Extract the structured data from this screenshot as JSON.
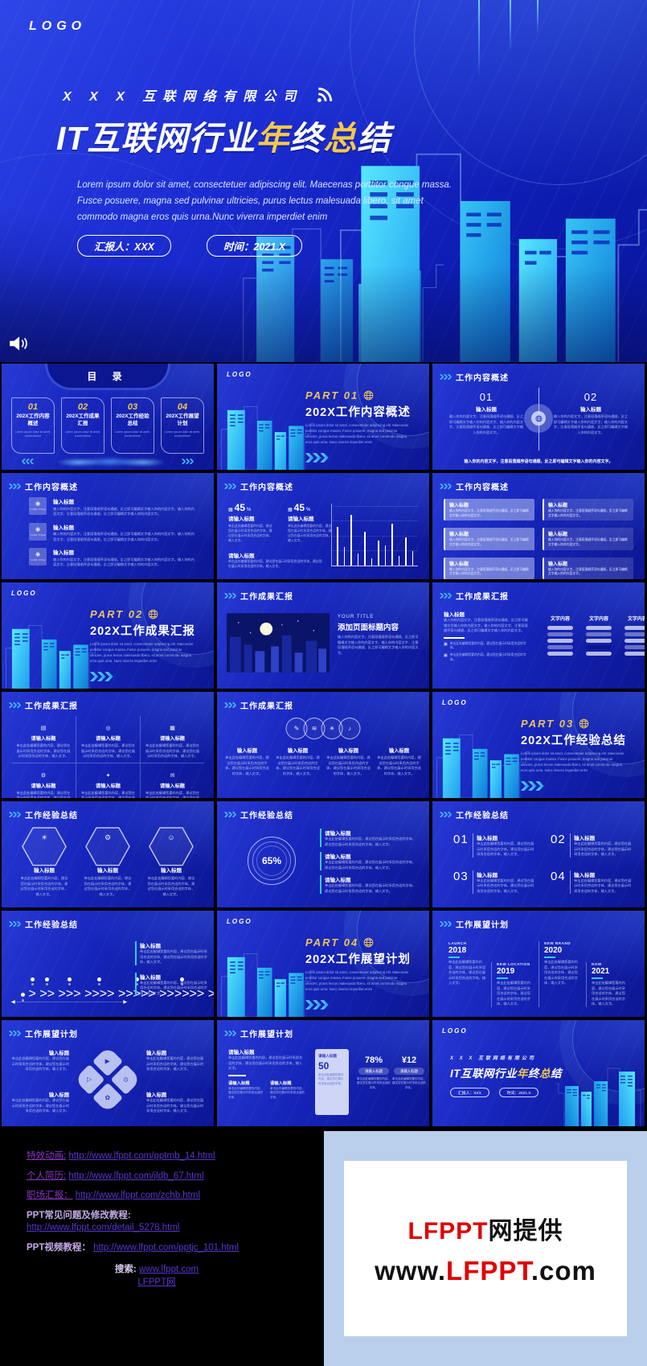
{
  "hero": {
    "logo": "LOGO",
    "company": "X X X 互联网络有限公司",
    "title_parts": [
      {
        "text": "IT互联网行业",
        "accent": false
      },
      {
        "text": "年",
        "accent": true
      },
      {
        "text": "终",
        "accent": false
      },
      {
        "text": "总",
        "accent": true
      },
      {
        "text": "结",
        "accent": false
      }
    ],
    "subtitle": "Lorem ipsum dolor sit amet, consectetuer adipiscing elit. Maecenas porttitor congue massa. Fusce posuere, magna sed pulvinar ultricies, purus lectus malesuada libero, sit amet commodo magna eros quis urna.Nunc viverra imperdiet enim",
    "presenter_badge": "汇报人：XXX",
    "date_badge": "时间：2021.X"
  },
  "colors": {
    "accent_yellow": "#f2c94c",
    "accent_cyan": "#39c7f2",
    "brand_red": "#e00000",
    "deep_blue": "#0d1cb2"
  },
  "placeholders": {
    "body": "输入你的内容文字，注意段落顺序语句通顺，反之即可编辑文字输入你的内容文字，输入你的内容文字，注意段落顺序语句通顺，反之即可编辑文字输入你的内容文字。",
    "body_short": "输入你的内容文字，注意段落顺序语句通顺，反之即可编辑文字输入你的内容文字。",
    "body_edit": "单击此处编辑您要的内容，建议您在展示时采用合适的字体，建议您在展示时采用合适的字体，输入文字。",
    "body_edit_short": "单击此处编辑您要的内容，建议您在展示时采用合适的字体。",
    "lorem": "Lorem ipsum dolor sit amet, consectetuer adipiscing elit. Maecenas porttitor congue massa. Fusce posuere, magna sed pulvinar ultricies, purus lectus malesuada libero, sit amet commodo magna eros quis urna. Nunc viverra imperdiet enim",
    "lorem_tiny": "Lorem ipsum dolor sit amet, consectetuer",
    "input_title": "输入标题",
    "enter_title": "请输入标题",
    "your_title": "YOUR TITLE",
    "text_content": "文字内容"
  },
  "slides": [
    {
      "type": "toc",
      "title": "目 录",
      "items": [
        {
          "num": "01",
          "title": "202X工作内容概述"
        },
        {
          "num": "02",
          "title": "202X工作成果汇报"
        },
        {
          "num": "03",
          "title": "202X工作经验总结"
        },
        {
          "num": "04",
          "title": "202X工作展望计划"
        }
      ]
    },
    {
      "type": "section",
      "part": "PART 01",
      "title": "202X工作内容概述"
    },
    {
      "type": "two_col",
      "header": "工作内容概述",
      "nums": [
        "01",
        "02"
      ]
    },
    {
      "type": "icon_list",
      "header": "工作内容概述",
      "count": 3
    },
    {
      "type": "stats_bars",
      "header": "工作内容概述",
      "stats": [
        {
          "value": "45",
          "unit": "%"
        },
        {
          "value": "45",
          "unit": "%"
        }
      ],
      "bars": [
        62,
        30,
        82,
        20,
        54,
        12,
        40,
        32,
        68,
        16,
        46,
        24
      ]
    },
    {
      "type": "pill_grid",
      "header": "工作内容概述",
      "rows": 3
    },
    {
      "type": "section",
      "part": "PART 02",
      "title": "202X工作成果汇报"
    },
    {
      "type": "image_caption",
      "header": "工作成果汇报",
      "eyebrow": "YOUR TITLE",
      "caption_title": "添加页面标题内容"
    },
    {
      "type": "equalizer",
      "header": "工作成果汇报",
      "column_count": 3
    },
    {
      "type": "icon_cols",
      "header": "工作成果汇报",
      "icons": [
        "chart",
        "target",
        "doc",
        "gear",
        "medal",
        "mail"
      ]
    },
    {
      "type": "circle_row",
      "header": "工作成果汇报",
      "icons": [
        "pencil",
        "wifi",
        "bulb",
        "bell"
      ]
    },
    {
      "type": "section",
      "part": "PART 03",
      "title": "202X工作经验总结"
    },
    {
      "type": "hexagons",
      "header": "工作经验总结",
      "icons": [
        "bulb",
        "tools",
        "person"
      ]
    },
    {
      "type": "donut_pct",
      "header": "工作经验总结",
      "value": "65%",
      "item_count": 3
    },
    {
      "type": "numbered",
      "header": "工作经验总结",
      "nums": [
        "01",
        "02",
        "03",
        "04"
      ]
    },
    {
      "type": "dot_chart",
      "header": "工作经验总结",
      "dots": [
        1,
        2,
        3,
        4,
        5,
        6,
        7,
        8,
        9,
        10
      ],
      "item_count": 2
    },
    {
      "type": "section",
      "part": "PART 04",
      "title": "202X工作展望计划"
    },
    {
      "type": "timeline",
      "header": "工作展望计划",
      "milestones": [
        {
          "label": "LAUNCH",
          "year": "2018"
        },
        {
          "label": "NEW LOCATION",
          "year": "2019"
        },
        {
          "label": "NEW BRAND",
          "year": "2020"
        },
        {
          "label": "NOW",
          "year": "2021"
        }
      ]
    },
    {
      "type": "quadrant",
      "header": "工作展望计划",
      "icons": [
        "video",
        "power",
        "play",
        "leaf"
      ]
    },
    {
      "type": "stat_panels",
      "header": "工作展望计划",
      "panels": [
        {
          "value": "50"
        },
        {
          "value": "78%"
        },
        {
          "value": "¥12"
        }
      ]
    },
    {
      "type": "closing"
    }
  ],
  "footer": {
    "links": [
      {
        "label": "特效动画:",
        "url": "http://www.lfppt.com/pptmb_14.html",
        "strong": false,
        "stacked": false
      },
      {
        "label": "个人简历:",
        "url": "http://www.lfppt.com/jldb_67.html",
        "strong": false,
        "stacked": false
      },
      {
        "label": "职场汇报：",
        "url": "http://www.lfppt.com/zchb.html",
        "strong": false,
        "stacked": false
      },
      {
        "label": "PPT常见问题及修改教程:",
        "url": "http://www.lfppt.com/detail_5278.html",
        "strong": true,
        "stacked": true
      },
      {
        "label": "PPT视频教程：",
        "url": "http://www.lfppt.com/pptjc_101.html",
        "strong": true,
        "stacked": false
      }
    ],
    "search_label": "搜索:",
    "search_links": [
      "www.lfppt.com",
      "LFPPT网"
    ]
  },
  "promo": {
    "line1_parts": [
      {
        "text": "LFPPT",
        "red": true
      },
      {
        "text": "网提供",
        "red": false
      }
    ],
    "line2_parts": [
      {
        "text": "www.",
        "red": false
      },
      {
        "text": "LFPPT",
        "red": true
      },
      {
        "text": ".com",
        "red": false
      }
    ]
  }
}
